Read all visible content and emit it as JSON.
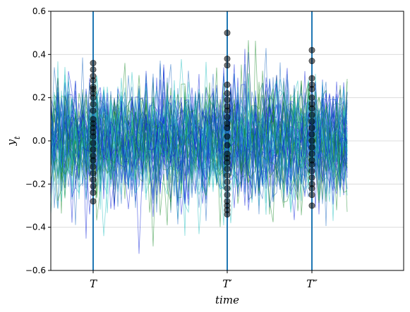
{
  "chart_data": {
    "type": "line",
    "title": "",
    "xlabel": "time",
    "ylabel": "y",
    "ylabel_subscript": "t",
    "ylim": [
      -0.6,
      0.6
    ],
    "xlim": [
      0,
      100
    ],
    "yticks": [
      -0.6,
      -0.4,
      -0.2,
      0.0,
      0.2,
      0.4,
      0.6
    ],
    "ytick_labels": [
      "−0.6",
      "−0.4",
      "−0.2",
      "0.0",
      "0.2",
      "0.4",
      "0.6"
    ],
    "grid": "horizontal",
    "x_range": [
      0,
      84
    ],
    "n_paths": 60,
    "path_std": 0.13,
    "series_colors": [
      "#0a1ed8",
      "#1a8a2a",
      "#20c0c0",
      "#1565c0"
    ],
    "marker_line_color": "#1f77b4",
    "marker_lines": [
      {
        "label": "T",
        "x": 12,
        "points": [
          0.36,
          0.33,
          0.3,
          0.28,
          0.25,
          0.24,
          0.22,
          0.2,
          0.17,
          0.14,
          0.1,
          0.08,
          0.06,
          0.04,
          0.02,
          -0.01,
          -0.04,
          -0.07,
          -0.09,
          -0.12,
          -0.15,
          -0.18,
          -0.21,
          -0.24,
          -0.28
        ]
      },
      {
        "label": "T′",
        "x": 50,
        "points": [
          0.5,
          0.38,
          0.35,
          0.26,
          0.22,
          0.19,
          0.16,
          0.14,
          0.11,
          0.08,
          0.06,
          0.02,
          -0.02,
          -0.06,
          -0.08,
          -0.1,
          -0.13,
          -0.16,
          -0.19,
          -0.22,
          -0.25,
          -0.28,
          -0.3,
          -0.32,
          -0.34
        ]
      },
      {
        "label": "T″",
        "x": 74,
        "points": [
          0.42,
          0.37,
          0.29,
          0.26,
          0.24,
          0.2,
          0.17,
          0.15,
          0.12,
          0.09,
          0.06,
          0.03,
          0.0,
          -0.03,
          -0.06,
          -0.09,
          -0.11,
          -0.14,
          -0.17,
          -0.2,
          -0.22,
          -0.25,
          -0.3
        ]
      }
    ]
  }
}
